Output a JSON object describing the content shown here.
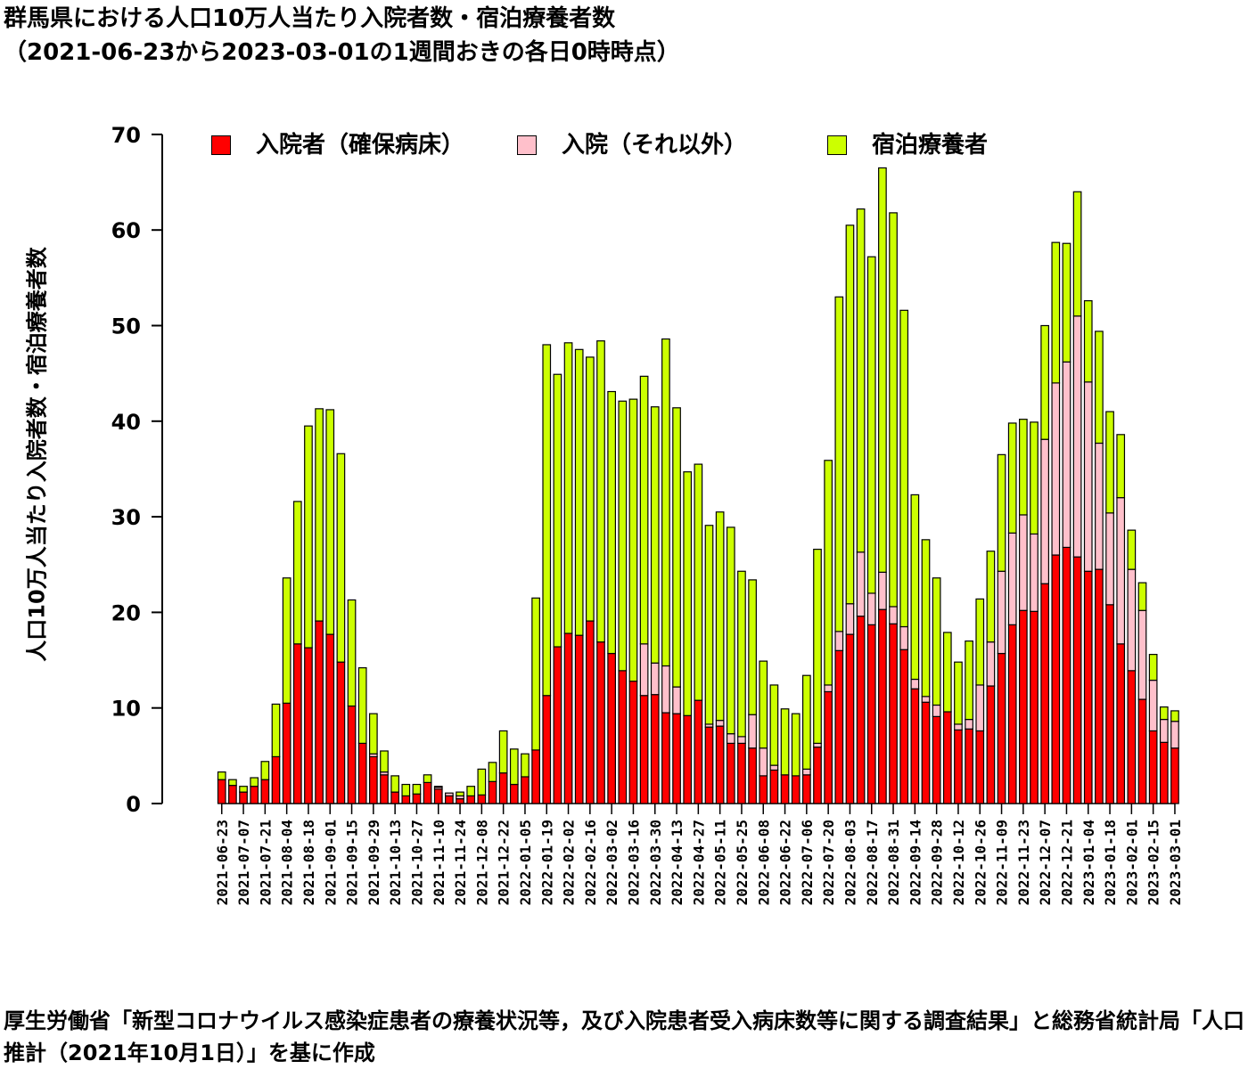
{
  "title": "群馬県における人口10万人当たり入院者数・宿泊療養者数",
  "subtitle": "（2021-06-23から2023-03-01の1週間おきの各日0時時点）",
  "source_note": "厚生労働省「新型コロナウイルス感染症患者の療養状況等，及び入院患者受入病床数等に関する調査結果」と総務省統計局「人口推計（2021年10月1日）」を基に作成",
  "chart_data": {
    "type": "bar",
    "stacked": true,
    "ylabel": "人口10万人当たり入院者数・宿泊療養者数",
    "xlabel": "",
    "ylim": [
      0,
      70
    ],
    "yticks": [
      0,
      10,
      20,
      30,
      40,
      50,
      60,
      70
    ],
    "legend_position": "top",
    "categories": [
      "2021-06-23",
      "2021-06-30",
      "2021-07-07",
      "2021-07-14",
      "2021-07-21",
      "2021-07-28",
      "2021-08-04",
      "2021-08-11",
      "2021-08-18",
      "2021-08-25",
      "2021-09-01",
      "2021-09-08",
      "2021-09-15",
      "2021-09-22",
      "2021-09-29",
      "2021-10-06",
      "2021-10-13",
      "2021-10-20",
      "2021-10-27",
      "2021-11-03",
      "2021-11-10",
      "2021-11-17",
      "2021-11-24",
      "2021-12-01",
      "2021-12-08",
      "2021-12-15",
      "2021-12-22",
      "2021-12-29",
      "2022-01-05",
      "2022-01-12",
      "2022-01-19",
      "2022-01-26",
      "2022-02-02",
      "2022-02-09",
      "2022-02-16",
      "2022-02-23",
      "2022-03-02",
      "2022-03-09",
      "2022-03-16",
      "2022-03-23",
      "2022-03-30",
      "2022-04-06",
      "2022-04-13",
      "2022-04-20",
      "2022-04-27",
      "2022-05-04",
      "2022-05-11",
      "2022-05-18",
      "2022-05-25",
      "2022-06-01",
      "2022-06-08",
      "2022-06-15",
      "2022-06-22",
      "2022-06-29",
      "2022-07-06",
      "2022-07-13",
      "2022-07-20",
      "2022-07-27",
      "2022-08-03",
      "2022-08-10",
      "2022-08-17",
      "2022-08-24",
      "2022-08-31",
      "2022-09-07",
      "2022-09-14",
      "2022-09-21",
      "2022-09-28",
      "2022-10-05",
      "2022-10-12",
      "2022-10-19",
      "2022-10-26",
      "2022-11-02",
      "2022-11-09",
      "2022-11-16",
      "2022-11-23",
      "2022-11-30",
      "2022-12-07",
      "2022-12-14",
      "2022-12-21",
      "2022-12-28",
      "2023-01-04",
      "2023-01-11",
      "2023-01-18",
      "2023-01-25",
      "2023-02-01",
      "2023-02-08",
      "2023-02-15",
      "2023-02-22",
      "2023-03-01"
    ],
    "tick_labels": [
      "2021-06-23",
      "2021-07-07",
      "2021-07-21",
      "2021-08-04",
      "2021-08-18",
      "2021-09-01",
      "2021-09-15",
      "2021-09-29",
      "2021-10-13",
      "2021-10-27",
      "2021-11-10",
      "2021-11-24",
      "2021-12-08",
      "2021-12-22",
      "2022-01-05",
      "2022-01-19",
      "2022-02-02",
      "2022-02-16",
      "2022-03-02",
      "2022-03-16",
      "2022-03-30",
      "2022-04-13",
      "2022-04-27",
      "2022-05-11",
      "2022-05-25",
      "2022-06-08",
      "2022-06-22",
      "2022-07-06",
      "2022-07-20",
      "2022-08-03",
      "2022-08-17",
      "2022-08-31",
      "2022-09-14",
      "2022-09-28",
      "2022-10-12",
      "2022-10-26",
      "2022-11-09",
      "2022-11-23",
      "2022-12-07",
      "2022-12-21",
      "2023-01-04",
      "2023-01-18",
      "2023-02-01",
      "2023-02-15",
      "2023-03-01"
    ],
    "series": [
      {
        "name": "入院者（確保病床）",
        "color": "#ff0000",
        "values": [
          2.5,
          1.9,
          1.2,
          1.8,
          2.5,
          4.9,
          10.5,
          16.7,
          16.3,
          19.1,
          17.7,
          14.8,
          10.2,
          6.3,
          4.9,
          3.0,
          1.2,
          0.8,
          1.0,
          2.2,
          1.5,
          0.8,
          0.5,
          0.8,
          0.9,
          2.3,
          3.2,
          2.0,
          2.8,
          5.6,
          11.3,
          16.4,
          17.8,
          17.6,
          19.1,
          16.9,
          15.7,
          13.9,
          12.8,
          11.3,
          11.4,
          9.5,
          9.4,
          9.2,
          10.8,
          8.0,
          8.1,
          6.3,
          6.3,
          5.8,
          2.9,
          3.5,
          3.0,
          2.9,
          3.0,
          5.9,
          11.7,
          16.0,
          17.7,
          19.6,
          18.7,
          20.3,
          18.8,
          16.1,
          12.0,
          10.6,
          9.1,
          9.6,
          7.7,
          7.8,
          7.6,
          12.3,
          15.7,
          18.7,
          20.2,
          20.1,
          23.0,
          26.0,
          26.8,
          25.8,
          24.3,
          24.5,
          20.8,
          16.7,
          13.9,
          10.9,
          7.6,
          6.4,
          5.8
        ]
      },
      {
        "name": "入院（それ以外）",
        "color": "#ffc0cb",
        "values": [
          0.0,
          0.0,
          0.0,
          0.0,
          0.0,
          0.0,
          0.0,
          0.0,
          0.0,
          0.0,
          0.0,
          0.0,
          0.0,
          0.0,
          0.3,
          0.3,
          0.0,
          0.0,
          0.0,
          0.0,
          0.2,
          0.3,
          0.3,
          0.0,
          0.0,
          0.0,
          0.0,
          0.0,
          0.0,
          0.0,
          0.0,
          0.0,
          0.0,
          0.0,
          0.0,
          0.0,
          0.0,
          0.0,
          0.0,
          5.4,
          3.3,
          4.9,
          2.8,
          0.0,
          0.0,
          0.3,
          0.6,
          1.0,
          0.7,
          3.5,
          2.9,
          0.5,
          0.0,
          0.0,
          0.6,
          0.4,
          0.7,
          2.0,
          3.2,
          6.7,
          3.3,
          3.9,
          1.8,
          2.4,
          1.0,
          0.6,
          1.2,
          0.0,
          0.6,
          1.0,
          4.8,
          4.6,
          8.6,
          9.6,
          10.0,
          8.1,
          15.1,
          18.0,
          19.4,
          25.2,
          19.8,
          13.2,
          9.6,
          15.3,
          10.6,
          9.3,
          5.3,
          2.4,
          2.8
        ]
      },
      {
        "name": "宿泊療養者",
        "color": "#ccff00",
        "values": [
          0.8,
          0.6,
          0.6,
          0.9,
          1.9,
          5.5,
          13.1,
          14.9,
          23.2,
          22.2,
          23.5,
          21.8,
          11.1,
          7.9,
          4.2,
          2.2,
          1.7,
          1.2,
          1.0,
          0.8,
          0.1,
          0.0,
          0.4,
          1.0,
          2.7,
          2.0,
          4.4,
          3.7,
          2.4,
          15.9,
          36.7,
          28.5,
          30.4,
          29.9,
          27.6,
          31.5,
          27.4,
          28.2,
          29.5,
          28.0,
          26.8,
          34.2,
          29.2,
          25.5,
          24.7,
          20.8,
          21.8,
          21.6,
          17.3,
          14.1,
          9.1,
          8.4,
          6.9,
          6.5,
          9.8,
          20.3,
          23.5,
          35.0,
          39.6,
          35.9,
          35.2,
          42.3,
          41.2,
          33.1,
          19.3,
          16.4,
          13.3,
          8.3,
          6.5,
          8.2,
          9.0,
          9.5,
          12.2,
          11.5,
          10.0,
          11.7,
          11.9,
          14.7,
          12.4,
          13.0,
          8.5,
          11.7,
          10.6,
          6.6,
          4.1,
          2.9,
          2.7,
          1.3,
          1.1
        ]
      }
    ]
  }
}
